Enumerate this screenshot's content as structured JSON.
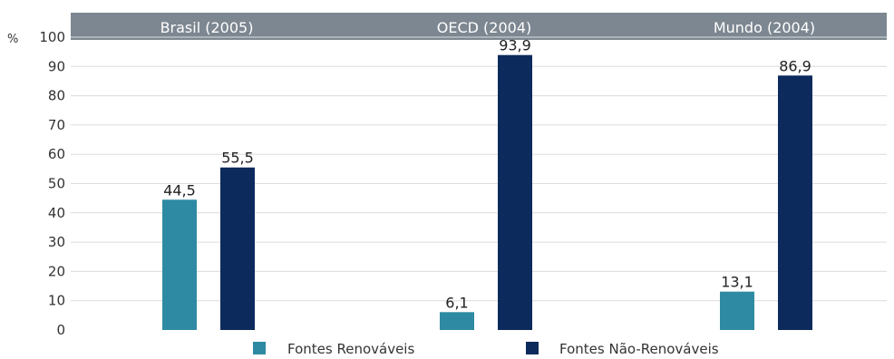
{
  "chart_data": {
    "type": "bar",
    "categories": [
      "Brasil (2005)",
      "OECD (2004)",
      "Mundo (2004)"
    ],
    "series": [
      {
        "name": "Fontes Renováveis",
        "values": [
          44.5,
          6.1,
          13.1
        ],
        "labels": [
          "44,5",
          "6,1",
          "13,1"
        ],
        "color": "#2e8aa3"
      },
      {
        "name": "Fontes Não-Renováveis",
        "values": [
          55.5,
          93.9,
          86.9
        ],
        "labels": [
          "55,5",
          "93,9",
          "86,9"
        ],
        "color": "#0d2a5c"
      }
    ],
    "ylabel": "%",
    "ylim": [
      0,
      100
    ],
    "yticks": [
      "0",
      "10",
      "20",
      "30",
      "40",
      "50",
      "60",
      "70",
      "80",
      "90",
      "100"
    ],
    "grid": true,
    "legend_position": "bottom",
    "header_color": "#7d8791"
  }
}
